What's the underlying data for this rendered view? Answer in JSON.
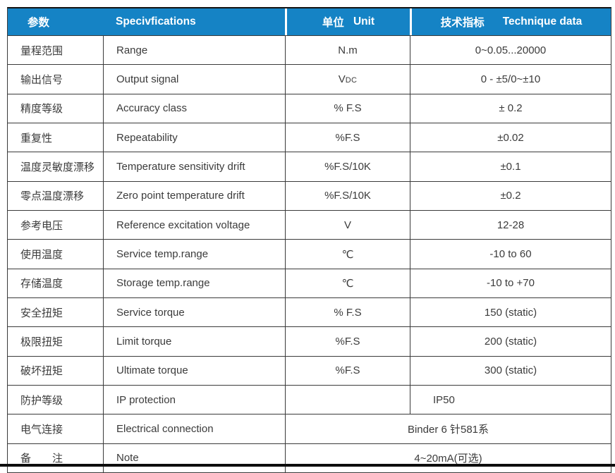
{
  "colors": {
    "header_bg": "#1583c5",
    "header_text": "#ffffff",
    "body_text": "#3b3b3b",
    "border": "#3a3a3a",
    "rule": "#0d0d0d"
  },
  "header": {
    "col_param": "参数",
    "col_spec": "Specivfications",
    "col_unit_zh": "单位",
    "col_unit_en": "Unit",
    "col_data_zh": "技术指标",
    "col_data_en": "Technique data"
  },
  "rows": [
    {
      "zh": "量程范围",
      "en": "Range",
      "unit": "N.m",
      "value": "0~0.05...20000"
    },
    {
      "zh": "输出信号",
      "en": "Output signal",
      "unit": "V",
      "unit_sub": "DC",
      "value": "0 - ±5/0~±10"
    },
    {
      "zh": "精度等级",
      "en": "Accuracy class",
      "unit": "% F.S",
      "value": "± 0.2"
    },
    {
      "zh": "重复性",
      "en": "Repeatability",
      "unit": "%F.S",
      "value": "±0.02"
    },
    {
      "zh": "温度灵敏度漂移",
      "en": "Temperature sensitivity drift",
      "unit": "%F.S/10K",
      "value": "±0.1"
    },
    {
      "zh": "零点温度漂移",
      "en": "Zero point temperature drift",
      "unit": "%F.S/10K",
      "value": "±0.2"
    },
    {
      "zh": "参考电压",
      "en": "Reference excitation voltage",
      "unit": "V",
      "value": "12-28"
    },
    {
      "zh": "使用温度",
      "en": "Service temp.range",
      "unit": "℃",
      "value": "-10 to 60"
    },
    {
      "zh": "存储温度",
      "en": "Storage temp.range",
      "unit": "℃",
      "value": "-10 to +70"
    },
    {
      "zh": "安全扭矩",
      "en": "Service torque",
      "unit": "% F.S",
      "value": "150 (static)"
    },
    {
      "zh": "极限扭矩",
      "en": "Limit torque",
      "unit": "%F.S",
      "value": "200 (static)"
    },
    {
      "zh": "破坏扭矩",
      "en": "Ultimate torque",
      "unit": "%F.S",
      "value": "300 (static)"
    },
    {
      "zh": "防护等级",
      "en": "IP protection",
      "unit": "",
      "value": "IP50"
    },
    {
      "zh": "电气连接",
      "en": "Electrical connection",
      "value": "Binder 6 针581系"
    },
    {
      "zh": "备　　注",
      "en": "Note",
      "value": "4~20mA(可选)"
    }
  ]
}
